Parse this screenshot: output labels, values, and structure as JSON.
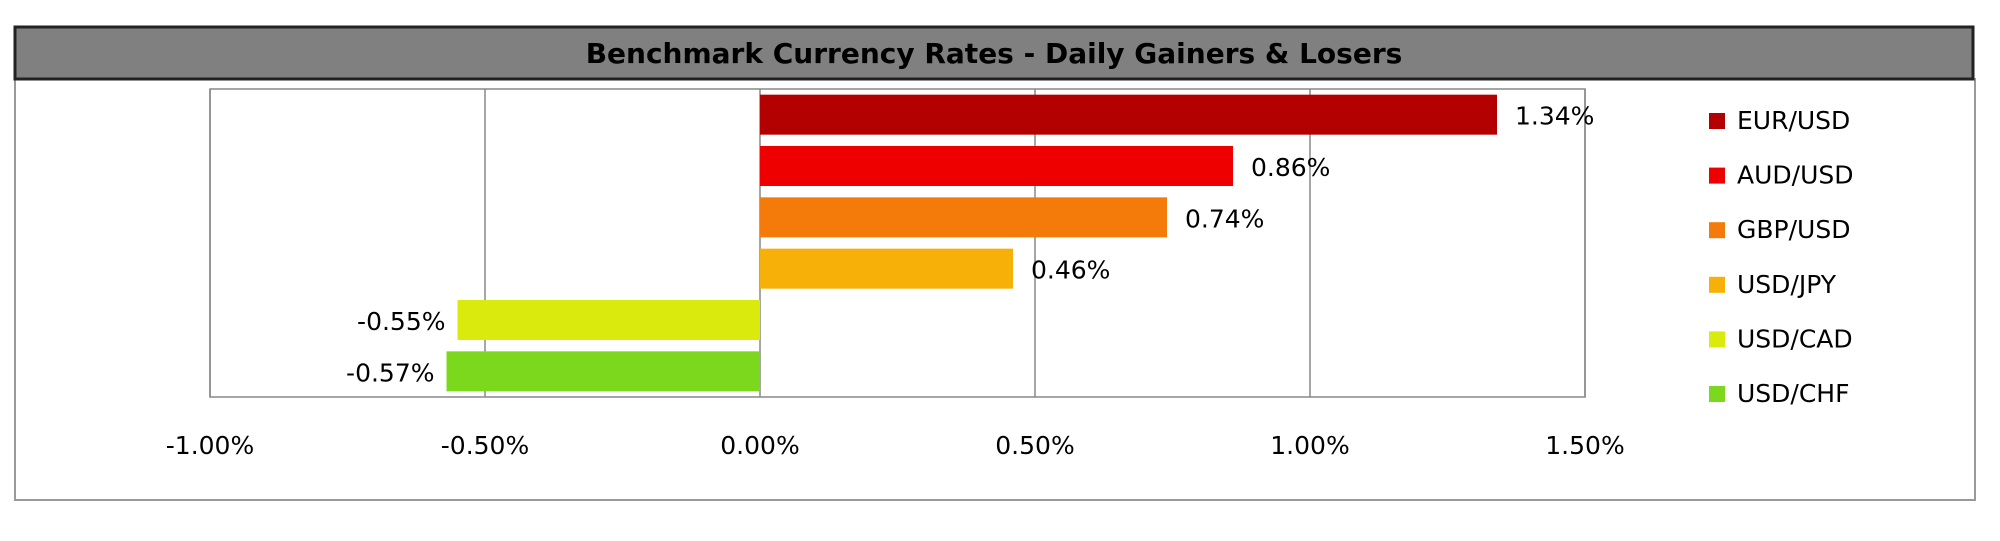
{
  "chart_data": {
    "type": "bar",
    "orientation": "horizontal",
    "title": "Benchmark Currency Rates - Daily Gainers & Losers",
    "series": [
      {
        "name": "EUR/USD",
        "color": "#b30000",
        "values": [
          1.34
        ],
        "value_labels": [
          "1.34%"
        ]
      },
      {
        "name": "AUD/USD",
        "color": "#ee0000",
        "values": [
          0.86
        ],
        "value_labels": [
          "0.86%"
        ]
      },
      {
        "name": "GBP/USD",
        "color": "#f47b0a",
        "values": [
          0.74
        ],
        "value_labels": [
          "0.74%"
        ]
      },
      {
        "name": "USD/JPY",
        "color": "#f7b008",
        "values": [
          0.46
        ],
        "value_labels": [
          "0.46%"
        ]
      },
      {
        "name": "USD/CAD",
        "color": "#d9ea0c",
        "values": [
          -0.55
        ],
        "value_labels": [
          "-0.55%"
        ]
      },
      {
        "name": "USD/CHF",
        "color": "#7cd81c",
        "values": [
          -0.57
        ],
        "value_labels": [
          "-0.57%"
        ]
      }
    ],
    "xlim": [
      -1,
      1.5
    ],
    "xticks": [
      {
        "value": -1,
        "label": "-1.00%"
      },
      {
        "value": -0.5,
        "label": "-0.50%"
      },
      {
        "value": 0,
        "label": "0.00%"
      },
      {
        "value": 0.5,
        "label": "0.50%"
      },
      {
        "value": 1,
        "label": "1.00%"
      },
      {
        "value": 1.5,
        "label": "1.50%"
      }
    ],
    "grid": true,
    "legend": "right"
  }
}
